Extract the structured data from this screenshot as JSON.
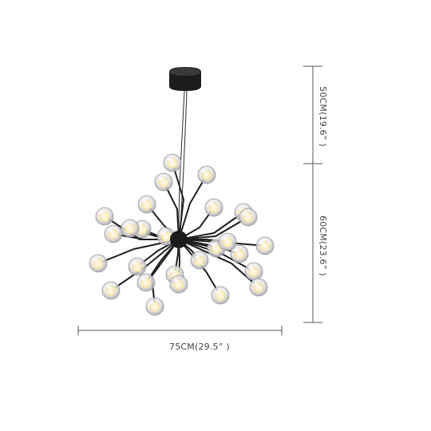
{
  "product": {
    "name": "chandelier",
    "finish_color": "#1a1a1a",
    "glass_color": "#dcdcdc",
    "bulb_color": "#fff6dc",
    "bulb_count": 27
  },
  "dimensions": {
    "width_label": "75CM(29.5” )",
    "cord_length_label": "50CM(19.6” )",
    "fixture_height_label": "60CM(23.6” )",
    "line_color": "#555555"
  }
}
